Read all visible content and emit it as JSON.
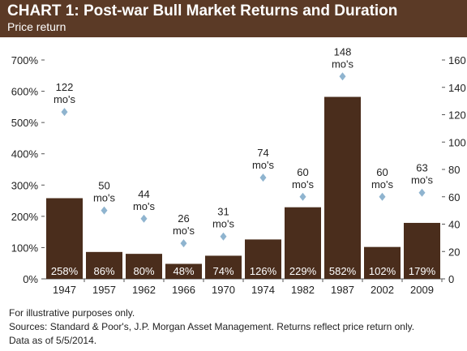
{
  "title": "CHART 1: Post-war Bull Market Returns and Duration",
  "subtitle": "Price return",
  "footnotes": [
    "For illustrative purposes only.",
    "Sources: Standard & Poor's, J.P. Morgan Asset Management. Returns reflect price return only.",
    "Data as of 5/5/2014."
  ],
  "colors": {
    "header": "#5b3a26",
    "bars": "#4a2d1c",
    "diamonds": "#8fb4cf"
  },
  "chart_data": {
    "type": "bar",
    "categories": [
      "1947",
      "1957",
      "1962",
      "1966",
      "1970",
      "1974",
      "1982",
      "1987",
      "2002",
      "2009"
    ],
    "series": [
      {
        "values": [
          258,
          86,
          80,
          48,
          74,
          126,
          229,
          582,
          102,
          179
        ],
        "labels": [
          "258%",
          "86%",
          "80%",
          "48%",
          "74%",
          "126%",
          "229%",
          "582%",
          "102%",
          "179%"
        ],
        "axis": "left"
      },
      {
        "type": "scatter",
        "values": [
          122,
          50,
          44,
          26,
          31,
          74,
          60,
          148,
          60,
          63
        ],
        "labels": [
          "122 mo's",
          "50 mo's",
          "44 mo's",
          "26 mo's",
          "31 mo's",
          "74 mo's",
          "60 mo's",
          "148 mo's",
          "60 mo's",
          "63 mo's"
        ],
        "axis": "right"
      }
    ],
    "y_left": {
      "ylim": [
        0,
        700
      ],
      "ticks": [
        "0%",
        "100%",
        "200%",
        "300%",
        "400%",
        "500%",
        "600%",
        "700%"
      ]
    },
    "y_right": {
      "ylim": [
        0,
        160
      ],
      "ticks": [
        "0",
        "20",
        "40",
        "60",
        "80",
        "100",
        "120",
        "140",
        "160"
      ]
    },
    "grid": false,
    "legend": "none"
  }
}
